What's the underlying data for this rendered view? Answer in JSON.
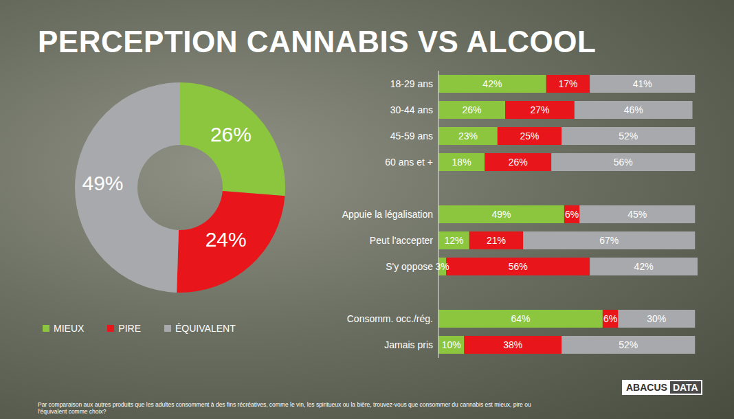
{
  "title": "PERCEPTION CANNABIS VS ALCOOL",
  "note": "Par comparaison aux autres produits que les adultes consomment à des fins récréatives, comme le vin, les spiritueux ou la bière, trouvez-vous que consommer du cannabis est mieux, pire ou l'équivalent comme choix?",
  "logo": "ABACUS DATA",
  "chart_data": [
    {
      "type": "pie",
      "categories": [
        "MIEUX",
        "PIRE",
        "ÉQUIVALENT"
      ],
      "values": [
        26,
        24,
        49
      ],
      "value_labels": [
        "26%",
        "24%",
        "49%"
      ],
      "colors": [
        "#8cc63f",
        "#e8161b",
        "#a7a9ac"
      ],
      "legend": "lower left",
      "data_labels": true
    },
    {
      "type": "bar",
      "orientation": "horizontal",
      "stacked": true,
      "data_labels": true,
      "tick_labels": "y",
      "categories": [
        "18-29 ans",
        "30-44 ans",
        "45-59 ans",
        "60 ans et +",
        null,
        "Appuie la légalisation",
        "Peut l'accepter",
        "S'y oppose",
        null,
        "Consomm. occ./rég.",
        "Jamais pris"
      ],
      "xlim": [
        0,
        101
      ],
      "series": [
        {
          "name": "MIEUX",
          "color": "#8cc63f",
          "values": [
            42,
            26,
            23,
            18,
            null,
            49,
            12,
            3,
            null,
            64,
            10
          ],
          "value_labels": [
            "42%",
            "26%",
            "23%",
            "18%",
            null,
            "49%",
            "12%",
            "3%",
            null,
            "64%",
            "10%"
          ]
        },
        {
          "name": "PIRE",
          "color": "#e8161b",
          "values": [
            17,
            27,
            25,
            26,
            null,
            6,
            21,
            56,
            null,
            6,
            38
          ],
          "value_labels": [
            "17%",
            "27%",
            "25%",
            "26%",
            null,
            "6%",
            "21%",
            "56%",
            null,
            "6%",
            "38%"
          ]
        },
        {
          "name": "ÉQUIVALENT",
          "color": "#a7a9ac",
          "values": [
            41,
            46,
            52,
            56,
            null,
            45,
            67,
            42,
            null,
            30,
            52
          ],
          "value_labels": [
            "41%",
            "46%",
            "52%",
            "56%",
            null,
            "45%",
            "67%",
            "42%",
            null,
            "30%",
            "52%"
          ]
        }
      ]
    }
  ]
}
